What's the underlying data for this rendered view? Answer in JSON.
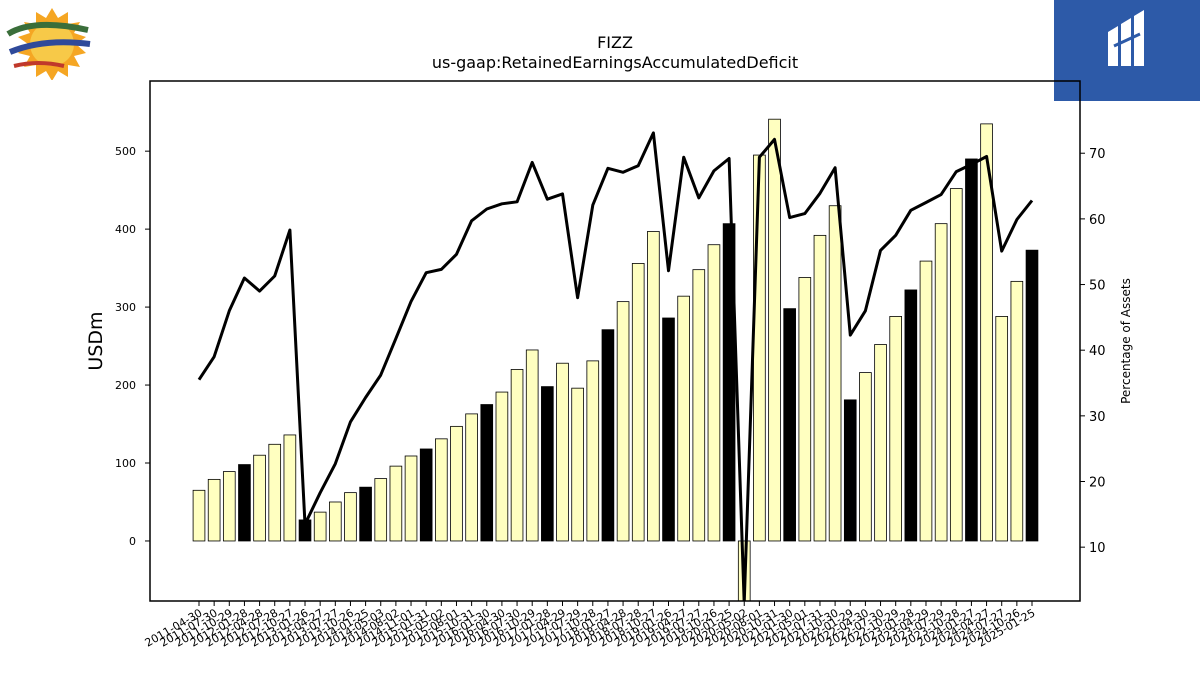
{
  "logos": {
    "left_name": "National Beverage Corp.",
    "right_name": "MIDGARD FINANCE"
  },
  "chart_data": {
    "type": "bar",
    "title": "FIZZ",
    "subtitle": "us-gaap:RetainedEarningsAccumulatedDeficit",
    "ylabel": "USDm",
    "y2label": "Percentage of Assets",
    "ylim": [
      -77,
      590
    ],
    "y2lim": [
      1.8,
      81.0
    ],
    "yticks": [
      0,
      100,
      200,
      300,
      400,
      500
    ],
    "y2ticks": [
      10,
      20,
      30,
      40,
      50,
      60,
      70
    ],
    "grid": false,
    "bar_colors": {
      "quarterly": "#ffffc0",
      "annual": "#000000"
    },
    "categories": [
      "2011-04-30",
      "2011-07-30",
      "2011-10-29",
      "2012-01-28",
      "2012-04-28",
      "2012-07-28",
      "2012-10-27",
      "2013-01-26",
      "2013-04-27",
      "2013-07-27",
      "2013-10-26",
      "2014-01-25",
      "2014-05-03",
      "2014-08-02",
      "2014-11-01",
      "2015-01-31",
      "2015-05-02",
      "2015-08-01",
      "2015-10-31",
      "2016-01-30",
      "2016-04-30",
      "2016-07-30",
      "2016-10-29",
      "2017-01-28",
      "2017-04-29",
      "2017-07-29",
      "2017-10-28",
      "2018-01-27",
      "2018-04-28",
      "2018-07-28",
      "2018-10-27",
      "2019-01-26",
      "2019-04-27",
      "2019-07-27",
      "2019-10-26",
      "2020-01-25",
      "2020-05-02",
      "2020-08-01",
      "2020-10-31",
      "2021-01-30",
      "2021-05-01",
      "2021-07-31",
      "2021-10-30",
      "2022-01-29",
      "2022-04-30",
      "2022-07-30",
      "2022-10-29",
      "2023-01-28",
      "2023-04-29",
      "2023-07-29",
      "2023-10-28",
      "2024-01-27",
      "2024-04-27",
      "2024-07-27",
      "2024-10-26",
      "2025-01-25"
    ],
    "xtick_labels": [
      "2011-04-30",
      "2011-07-30",
      "2011-10-29",
      "2012-01-28",
      "2012-04-28",
      "2012-07-28",
      "2012-10-27",
      "2013-01-26",
      "2013-04-27",
      "2013-07-27",
      "2013-10-26",
      "2014-01-25",
      "2014-05-03",
      "2014-08-02",
      "2014-11-01",
      "2015-01-31",
      "2015-05-02",
      "2015-08-01",
      "2015-10-31",
      "2016-01-30",
      "2016-04-30",
      "2016-07-30",
      "2016-10-29",
      "2017-01-28",
      "2017-04-29",
      "2017-07-29",
      "2017-10-28",
      "2018-01-27",
      "2018-04-28",
      "2018-07-28",
      "2018-10-27",
      "2019-01-26",
      "2019-04-27",
      "2019-07-27",
      "2019-10-26",
      "2020-01-25",
      "2020-05-02",
      "2020-08-01",
      "2020-10-31",
      "2021-01-30",
      "2021-05-01",
      "2021-07-31",
      "2021-10-30",
      "2022-01-29",
      "2022-04-30",
      "2022-07-30",
      "2022-10-29",
      "2023-01-28",
      "2023-04-29",
      "2023-07-29",
      "2023-10-28",
      "2024-01-27",
      "2024-04-27",
      "2024-07-27",
      "2024-10-26",
      "2025-01-25"
    ],
    "series": [
      {
        "kind": "bar",
        "axis": "left",
        "values": [
          65,
          79,
          89,
          98,
          110,
          124,
          136,
          27,
          37,
          50,
          62,
          69,
          80,
          96,
          109,
          118,
          131,
          147,
          163,
          175,
          191,
          220,
          245,
          198,
          228,
          196,
          231,
          271,
          307,
          356,
          397,
          286,
          314,
          348,
          380,
          407,
          -78,
          495,
          541,
          298,
          338,
          392,
          430,
          181,
          216,
          252,
          288,
          322,
          359,
          407,
          452,
          490,
          535,
          288,
          333,
          373
        ],
        "is_annual": [
          false,
          false,
          false,
          true,
          false,
          false,
          false,
          true,
          false,
          false,
          false,
          true,
          false,
          false,
          false,
          true,
          false,
          false,
          false,
          true,
          false,
          false,
          false,
          true,
          false,
          false,
          false,
          true,
          false,
          false,
          false,
          true,
          false,
          false,
          false,
          true,
          false,
          false,
          false,
          true,
          false,
          false,
          false,
          true,
          false,
          false,
          false,
          true,
          false,
          false,
          false,
          true,
          false,
          false,
          false,
          true
        ]
      },
      {
        "kind": "line",
        "axis": "right",
        "color": "#000000",
        "values": [
          35.5,
          39.0,
          46.0,
          51.0,
          49.0,
          51.3,
          58.3,
          13.5,
          18.3,
          22.7,
          29.1,
          32.8,
          36.2,
          41.8,
          47.4,
          51.8,
          52.3,
          54.6,
          59.7,
          61.5,
          62.3,
          62.6,
          68.6,
          63.0,
          63.8,
          48.0,
          62.1,
          67.7,
          67.1,
          68.1,
          73.1,
          52.1,
          69.4,
          63.2,
          67.3,
          69.2,
          -5.0,
          69.4,
          72.1,
          60.2,
          60.8,
          63.9,
          67.8,
          42.3,
          46.0,
          55.2,
          57.5,
          61.3,
          62.5,
          63.7,
          67.2,
          68.3,
          69.5,
          55.1,
          59.9,
          62.8
        ]
      }
    ]
  }
}
